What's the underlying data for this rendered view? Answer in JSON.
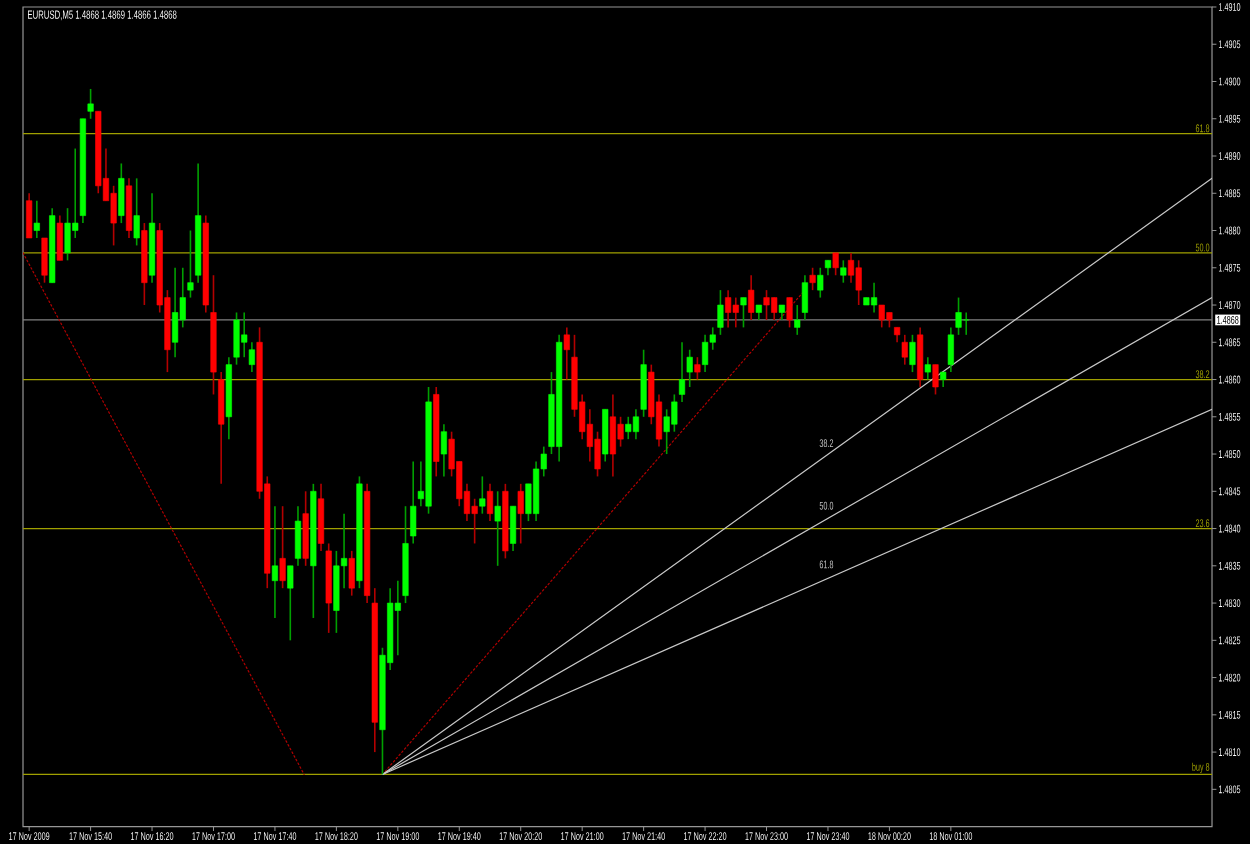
{
  "chart_data": {
    "type": "candlestick",
    "title": "EURUSD,M5 1.4868 1.4869 1.4866 1.4868",
    "x": [
      "2009-11-17T15:00",
      "2009-11-17T15:05",
      "2009-11-17T15:10",
      "2009-11-17T15:15",
      "2009-11-17T15:20",
      "2009-11-17T15:25",
      "2009-11-17T15:30",
      "2009-11-17T15:35",
      "2009-11-17T15:40",
      "2009-11-17T15:45",
      "2009-11-17T15:50",
      "2009-11-17T15:55",
      "2009-11-17T16:00",
      "2009-11-17T16:05",
      "2009-11-17T16:10",
      "2009-11-17T16:15",
      "2009-11-17T16:20",
      "2009-11-17T16:25",
      "2009-11-17T16:30",
      "2009-11-17T16:35",
      "2009-11-17T16:40",
      "2009-11-17T16:45",
      "2009-11-17T16:50",
      "2009-11-17T16:55",
      "2009-11-17T17:00",
      "2009-11-17T17:05",
      "2009-11-17T17:10",
      "2009-11-17T17:15",
      "2009-11-17T17:20",
      "2009-11-17T17:25",
      "2009-11-17T17:30",
      "2009-11-17T17:35",
      "2009-11-17T17:40",
      "2009-11-17T17:45",
      "2009-11-17T17:50",
      "2009-11-17T17:55",
      "2009-11-17T18:00",
      "2009-11-17T18:05",
      "2009-11-17T18:10",
      "2009-11-17T18:15",
      "2009-11-17T18:20",
      "2009-11-17T18:25",
      "2009-11-17T18:30",
      "2009-11-17T18:35",
      "2009-11-17T18:40",
      "2009-11-17T18:45",
      "2009-11-17T18:50",
      "2009-11-17T18:55",
      "2009-11-17T19:00",
      "2009-11-17T19:05",
      "2009-11-17T19:10",
      "2009-11-17T19:15",
      "2009-11-17T19:20",
      "2009-11-17T19:25",
      "2009-11-17T19:30",
      "2009-11-17T19:35",
      "2009-11-17T19:40",
      "2009-11-17T19:45",
      "2009-11-17T19:50",
      "2009-11-17T19:55",
      "2009-11-17T20:00",
      "2009-11-17T20:05",
      "2009-11-17T20:10",
      "2009-11-17T20:15",
      "2009-11-17T20:20",
      "2009-11-17T20:25",
      "2009-11-17T20:30",
      "2009-11-17T20:35",
      "2009-11-17T20:40",
      "2009-11-17T20:45",
      "2009-11-17T20:50",
      "2009-11-17T20:55",
      "2009-11-17T21:00",
      "2009-11-17T21:05",
      "2009-11-17T21:10",
      "2009-11-17T21:15",
      "2009-11-17T21:20",
      "2009-11-17T21:25",
      "2009-11-17T21:30",
      "2009-11-17T21:35",
      "2009-11-17T21:40",
      "2009-11-17T21:45",
      "2009-11-17T21:50",
      "2009-11-17T21:55",
      "2009-11-17T22:00",
      "2009-11-17T22:05",
      "2009-11-17T22:10",
      "2009-11-17T22:15",
      "2009-11-17T22:20",
      "2009-11-17T22:25",
      "2009-11-17T22:30",
      "2009-11-17T22:35",
      "2009-11-17T22:40",
      "2009-11-17T22:45",
      "2009-11-17T22:50",
      "2009-11-17T22:55",
      "2009-11-17T23:00",
      "2009-11-17T23:05",
      "2009-11-17T23:10",
      "2009-11-17T23:15",
      "2009-11-17T23:20",
      "2009-11-17T23:25",
      "2009-11-17T23:30",
      "2009-11-17T23:35",
      "2009-11-17T23:40",
      "2009-11-17T23:45",
      "2009-11-17T23:50",
      "2009-11-17T23:55",
      "2009-11-18T00:00",
      "2009-11-18T00:05",
      "2009-11-18T00:10",
      "2009-11-18T00:15",
      "2009-11-18T00:20",
      "2009-11-18T00:25",
      "2009-11-18T00:30",
      "2009-11-18T00:35",
      "2009-11-18T00:40",
      "2009-11-18T00:45",
      "2009-11-18T00:50",
      "2009-11-18T00:55",
      "2009-11-18T01:00",
      "2009-11-18T01:05",
      "2009-11-18T01:10"
    ],
    "ohlc": [
      [
        1.4884,
        1.4885,
        1.4879,
        1.4879
      ],
      [
        1.488,
        1.4884,
        1.4879,
        1.4881
      ],
      [
        1.4879,
        1.4879,
        1.4873,
        1.4874
      ],
      [
        1.4873,
        1.4883,
        1.4873,
        1.4882
      ],
      [
        1.4881,
        1.4882,
        1.4876,
        1.4876
      ],
      [
        1.4877,
        1.4883,
        1.4876,
        1.4881
      ],
      [
        1.488,
        1.4891,
        1.4879,
        1.4881
      ],
      [
        1.4882,
        1.4895,
        1.4881,
        1.4895
      ],
      [
        1.4896,
        1.4899,
        1.4895,
        1.4897
      ],
      [
        1.4896,
        1.4896,
        1.4885,
        1.4886
      ],
      [
        1.4887,
        1.4891,
        1.4884,
        1.4884
      ],
      [
        1.4885,
        1.4886,
        1.4878,
        1.4881
      ],
      [
        1.4882,
        1.4889,
        1.4881,
        1.4887
      ],
      [
        1.4886,
        1.4887,
        1.4879,
        1.488
      ],
      [
        1.4879,
        1.4887,
        1.4878,
        1.4882
      ],
      [
        1.488,
        1.4881,
        1.487,
        1.4873
      ],
      [
        1.4874,
        1.4885,
        1.4873,
        1.4881
      ],
      [
        1.488,
        1.4881,
        1.4869,
        1.487
      ],
      [
        1.4871,
        1.4872,
        1.4861,
        1.4864
      ],
      [
        1.4865,
        1.4875,
        1.4863,
        1.4869
      ],
      [
        1.4868,
        1.4875,
        1.4867,
        1.4871
      ],
      [
        1.4872,
        1.488,
        1.4871,
        1.4873
      ],
      [
        1.4874,
        1.4889,
        1.4873,
        1.4882
      ],
      [
        1.4881,
        1.4882,
        1.4869,
        1.487
      ],
      [
        1.4869,
        1.4874,
        1.4858,
        1.4861
      ],
      [
        1.486,
        1.4861,
        1.4846,
        1.4854
      ],
      [
        1.4855,
        1.4863,
        1.4852,
        1.4862
      ],
      [
        1.4863,
        1.4869,
        1.4862,
        1.4868
      ],
      [
        1.4865,
        1.4869,
        1.4863,
        1.4866
      ],
      [
        1.4862,
        1.4865,
        1.4861,
        1.4864
      ],
      [
        1.4865,
        1.4867,
        1.4844,
        1.4845
      ],
      [
        1.4846,
        1.4847,
        1.4832,
        1.4834
      ],
      [
        1.4833,
        1.4843,
        1.4828,
        1.4835
      ],
      [
        1.4836,
        1.4843,
        1.4832,
        1.4833
      ],
      [
        1.4832,
        1.4835,
        1.4825,
        1.4835
      ],
      [
        1.4836,
        1.4843,
        1.4835,
        1.4841
      ],
      [
        1.4842,
        1.4845,
        1.4835,
        1.4836
      ],
      [
        1.4835,
        1.4846,
        1.4828,
        1.4845
      ],
      [
        1.4844,
        1.4846,
        1.4837,
        1.4838
      ],
      [
        1.4837,
        1.4838,
        1.4826,
        1.483
      ],
      [
        1.4829,
        1.4837,
        1.4826,
        1.4835
      ],
      [
        1.4835,
        1.4842,
        1.4832,
        1.4836
      ],
      [
        1.4836,
        1.4837,
        1.4831,
        1.4832
      ],
      [
        1.4833,
        1.4847,
        1.4832,
        1.4846
      ],
      [
        1.4845,
        1.4846,
        1.483,
        1.4831
      ],
      [
        1.483,
        1.4832,
        1.481,
        1.4814
      ],
      [
        1.4813,
        1.4824,
        1.4807,
        1.4823
      ],
      [
        1.4822,
        1.4832,
        1.4821,
        1.483
      ],
      [
        1.4829,
        1.4833,
        1.4823,
        1.483
      ],
      [
        1.4831,
        1.4843,
        1.483,
        1.4838
      ],
      [
        1.4839,
        1.4849,
        1.4838,
        1.4843
      ],
      [
        1.4844,
        1.4849,
        1.4843,
        1.4845
      ],
      [
        1.4843,
        1.4859,
        1.4842,
        1.4857
      ],
      [
        1.4858,
        1.4859,
        1.4847,
        1.4849
      ],
      [
        1.485,
        1.4854,
        1.4847,
        1.4853
      ],
      [
        1.4852,
        1.4853,
        1.4847,
        1.4848
      ],
      [
        1.4849,
        1.4849,
        1.4843,
        1.4844
      ],
      [
        1.4845,
        1.4846,
        1.4841,
        1.4842
      ],
      [
        1.4843,
        1.4844,
        1.4838,
        1.4842
      ],
      [
        1.4843,
        1.4847,
        1.4842,
        1.4844
      ],
      [
        1.4845,
        1.4846,
        1.4841,
        1.4842
      ],
      [
        1.4841,
        1.4845,
        1.4835,
        1.4843
      ],
      [
        1.4845,
        1.4846,
        1.4836,
        1.4837
      ],
      [
        1.4838,
        1.4843,
        1.4837,
        1.4843
      ],
      [
        1.4845,
        1.4846,
        1.4838,
        1.4842
      ],
      [
        1.4842,
        1.4846,
        1.4841,
        1.4846
      ],
      [
        1.4842,
        1.4849,
        1.4841,
        1.4848
      ],
      [
        1.4848,
        1.4851,
        1.4847,
        1.485
      ],
      [
        1.4851,
        1.4861,
        1.485,
        1.4858
      ],
      [
        1.4851,
        1.4866,
        1.4849,
        1.4865
      ],
      [
        1.4866,
        1.4867,
        1.486,
        1.4864
      ],
      [
        1.4863,
        1.4866,
        1.4855,
        1.4856
      ],
      [
        1.4857,
        1.4858,
        1.4852,
        1.4853
      ],
      [
        1.4854,
        1.4856,
        1.4849,
        1.4851
      ],
      [
        1.4852,
        1.4853,
        1.4847,
        1.4848
      ],
      [
        1.485,
        1.4856,
        1.4849,
        1.4856
      ],
      [
        1.4855,
        1.4858,
        1.4847,
        1.485
      ],
      [
        1.4854,
        1.4855,
        1.4851,
        1.4852
      ],
      [
        1.4853,
        1.4855,
        1.4852,
        1.4854
      ],
      [
        1.4853,
        1.4856,
        1.4852,
        1.4855
      ],
      [
        1.4856,
        1.4864,
        1.4855,
        1.4862
      ],
      [
        1.4861,
        1.4862,
        1.4854,
        1.4855
      ],
      [
        1.4857,
        1.4858,
        1.4851,
        1.4852
      ],
      [
        1.4853,
        1.4856,
        1.485,
        1.4855
      ],
      [
        1.4854,
        1.4858,
        1.4853,
        1.4857
      ],
      [
        1.4858,
        1.4865,
        1.4857,
        1.486
      ],
      [
        1.4861,
        1.4864,
        1.4859,
        1.4863
      ],
      [
        1.4862,
        1.4863,
        1.486,
        1.4861
      ],
      [
        1.4862,
        1.4866,
        1.4861,
        1.4865
      ],
      [
        1.4865,
        1.4867,
        1.4864,
        1.4866
      ],
      [
        1.4867,
        1.4872,
        1.4866,
        1.487
      ],
      [
        1.4871,
        1.4872,
        1.4867,
        1.4869
      ],
      [
        1.487,
        1.4871,
        1.4867,
        1.4869
      ],
      [
        1.487,
        1.4871,
        1.4867,
        1.4871
      ],
      [
        1.4872,
        1.4874,
        1.4868,
        1.4869
      ],
      [
        1.4869,
        1.487,
        1.4868,
        1.487
      ],
      [
        1.4871,
        1.4872,
        1.4868,
        1.487
      ],
      [
        1.4871,
        1.4871,
        1.4868,
        1.4869
      ],
      [
        1.4869,
        1.487,
        1.4868,
        1.487
      ],
      [
        1.4871,
        1.4871,
        1.4867,
        1.4868
      ],
      [
        1.4867,
        1.487,
        1.4866,
        1.4868
      ],
      [
        1.4869,
        1.4874,
        1.4868,
        1.4873
      ],
      [
        1.4874,
        1.4875,
        1.4872,
        1.4873
      ],
      [
        1.4872,
        1.4875,
        1.4871,
        1.4874
      ],
      [
        1.4875,
        1.4876,
        1.4874,
        1.4876
      ],
      [
        1.4877,
        1.4877,
        1.4874,
        1.4875
      ],
      [
        1.4874,
        1.4876,
        1.4873,
        1.4875
      ],
      [
        1.4876,
        1.4877,
        1.4873,
        1.4874
      ],
      [
        1.4875,
        1.4876,
        1.487,
        1.4872
      ],
      [
        1.487,
        1.4871,
        1.487,
        1.4871
      ],
      [
        1.487,
        1.4873,
        1.4869,
        1.4871
      ],
      [
        1.487,
        1.487,
        1.4867,
        1.4868
      ],
      [
        1.4869,
        1.4869,
        1.4867,
        1.4868
      ],
      [
        1.4867,
        1.4867,
        1.4865,
        1.4866
      ],
      [
        1.4865,
        1.4866,
        1.4862,
        1.4863
      ],
      [
        1.4862,
        1.4866,
        1.4861,
        1.4865
      ],
      [
        1.4866,
        1.4867,
        1.4859,
        1.486
      ],
      [
        1.4861,
        1.4863,
        1.486,
        1.4862
      ],
      [
        1.4862,
        1.4862,
        1.4858,
        1.4859
      ],
      [
        1.486,
        1.4861,
        1.4859,
        1.4861
      ],
      [
        1.4862,
        1.4867,
        1.4861,
        1.4866
      ],
      [
        1.4867,
        1.4871,
        1.4866,
        1.4869
      ],
      [
        1.4868,
        1.4869,
        1.4866,
        1.4868
      ]
    ],
    "xlim": [
      "2009-11-17T14:56",
      "2009-11-18T03:50"
    ],
    "xticks": [
      {
        "value": "2009-11-17T15:00",
        "label": "17 Nov 2009"
      },
      {
        "value": "2009-11-17T15:40",
        "label": "17 Nov 15:40"
      },
      {
        "value": "2009-11-17T16:20",
        "label": "17 Nov 16:20"
      },
      {
        "value": "2009-11-17T17:00",
        "label": "17 Nov 17:00"
      },
      {
        "value": "2009-11-17T17:40",
        "label": "17 Nov 17:40"
      },
      {
        "value": "2009-11-17T18:20",
        "label": "17 Nov 18:20"
      },
      {
        "value": "2009-11-17T19:00",
        "label": "17 Nov 19:00"
      },
      {
        "value": "2009-11-17T19:40",
        "label": "17 Nov 19:40"
      },
      {
        "value": "2009-11-17T20:20",
        "label": "17 Nov 20:20"
      },
      {
        "value": "2009-11-17T21:00",
        "label": "17 Nov 21:00"
      },
      {
        "value": "2009-11-17T21:40",
        "label": "17 Nov 21:40"
      },
      {
        "value": "2009-11-17T22:20",
        "label": "17 Nov 22:20"
      },
      {
        "value": "2009-11-17T23:00",
        "label": "17 Nov 23:00"
      },
      {
        "value": "2009-11-17T23:40",
        "label": "17 Nov 23:40"
      },
      {
        "value": "2009-11-18T00:20",
        "label": "18 Nov 00:20"
      },
      {
        "value": "2009-11-18T01:00",
        "label": "18 Nov 01:00"
      }
    ],
    "ylim": [
      1.48,
      1.491
    ],
    "yticks": [
      1.4805,
      {
        "value": 1.481,
        "label": "1.4810"
      },
      1.4815,
      {
        "value": 1.482,
        "label": "1.4820"
      },
      1.4825,
      {
        "value": 1.483,
        "label": "1.4830"
      },
      1.4835,
      {
        "value": 1.484,
        "label": "1.4840"
      },
      1.4845,
      {
        "value": 1.485,
        "label": "1.4850"
      },
      1.4855,
      {
        "value": 1.486,
        "label": "1.4860"
      },
      1.4865,
      {
        "value": 1.487,
        "label": "1.4870"
      },
      1.4875,
      {
        "value": 1.488,
        "label": "1.4880"
      },
      1.4885,
      {
        "value": 1.489,
        "label": "1.4890"
      },
      1.4895,
      {
        "value": 1.49,
        "label": "1.4900"
      },
      1.4905,
      {
        "value": 1.491,
        "label": "1.4910"
      }
    ],
    "series": [
      {
        "type": "line",
        "color": "#b00000",
        "line_style": "dotted",
        "x": [
          "2009-11-17T14:56",
          "2009-11-17T17:59"
        ],
        "values": [
          1.4877,
          1.4807
        ]
      },
      {
        "type": "line",
        "color": "#b00000",
        "line_style": "dotted",
        "x": [
          "2009-11-17T18:50",
          "2009-11-17T23:25"
        ],
        "values": [
          1.4807,
          1.4872
        ]
      },
      {
        "type": "line",
        "name": "38.2",
        "color": "#c8c8c8",
        "x": [
          "2009-11-17T18:50",
          "2009-11-18T03:50"
        ],
        "values": [
          1.4807,
          1.4887
        ]
      },
      {
        "type": "line",
        "name": "50.0",
        "color": "#c8c8c8",
        "x": [
          "2009-11-17T18:50",
          "2009-11-18T03:50"
        ],
        "values": [
          1.4807,
          1.4871
        ]
      },
      {
        "type": "line",
        "name": "61.8",
        "color": "#c8c8c8",
        "x": [
          "2009-11-17T18:50",
          "2009-11-18T03:50"
        ],
        "values": [
          1.4807,
          1.4856
        ]
      }
    ],
    "ref_lines": [
      {
        "axis": "y",
        "value": 1.4868,
        "label": "1.4868",
        "color": "#808080"
      },
      {
        "axis": "y",
        "value": 1.4893,
        "color": "#a0a000"
      },
      {
        "axis": "y",
        "value": 1.4877,
        "color": "#a0a000"
      },
      {
        "axis": "y",
        "value": 1.486,
        "color": "#a0a000"
      },
      {
        "axis": "y",
        "value": 1.484,
        "color": "#a0a000"
      },
      {
        "axis": "y",
        "value": 1.4807,
        "color": "#a0a000"
      }
    ],
    "annotations": [
      {
        "text": "61.8",
        "y": 1.4893
      },
      {
        "text": "50.0",
        "y": 1.4877
      },
      {
        "text": "38.2",
        "y": 1.486
      },
      {
        "text": "23.6",
        "y": 1.484
      },
      {
        "text": "buy 8",
        "y": 1.4807
      }
    ]
  }
}
